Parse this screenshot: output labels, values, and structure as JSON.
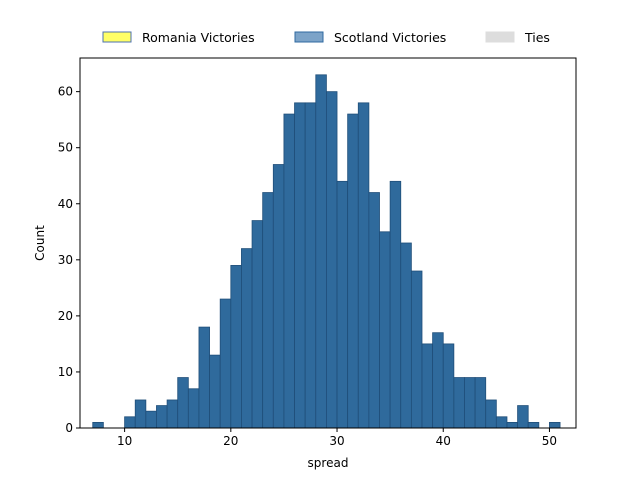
{
  "chart_data": {
    "type": "bar",
    "xlabel": "spread",
    "ylabel": "Count",
    "xlim": [
      5.8,
      52.5
    ],
    "ylim": [
      0,
      66
    ],
    "xticks": [
      10,
      20,
      30,
      40,
      50
    ],
    "yticks": [
      0,
      10,
      20,
      30,
      40,
      50,
      60
    ],
    "grid": false,
    "legend_placement": "top-center, above plot",
    "legend": [
      {
        "label": "Romania Victories",
        "color": "#ffff66",
        "edge": "#4c72b0"
      },
      {
        "label": "Scotland Victories",
        "color": "#7ca3c8",
        "edge": "#2f6aa0"
      },
      {
        "label": "Ties",
        "color": "#dddddd",
        "edge": "#dddddd"
      }
    ],
    "bar_color": "#2f6a9c",
    "bar_edge": "#1f4e79",
    "bin_start": 7.0,
    "bin_width": 1.0,
    "series": [
      {
        "name": "Scotland Victories",
        "values": [
          1,
          0,
          0,
          2,
          5,
          3,
          4,
          5,
          9,
          7,
          18,
          13,
          23,
          29,
          32,
          37,
          42,
          47,
          56,
          58,
          58,
          63,
          60,
          44,
          56,
          58,
          42,
          35,
          44,
          33,
          28,
          15,
          17,
          15,
          9,
          9,
          9,
          5,
          2,
          1,
          4,
          1,
          0,
          1
        ]
      }
    ]
  }
}
